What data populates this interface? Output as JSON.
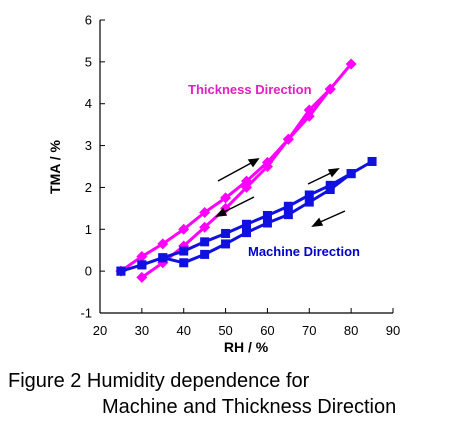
{
  "chart_data": {
    "type": "line",
    "xlabel": "RH / %",
    "ylabel": "TMA / %",
    "xlim": [
      20,
      90
    ],
    "ylim": [
      -1,
      6
    ],
    "x_ticks": [
      "20",
      "30",
      "40",
      "50",
      "60",
      "70",
      "80",
      "90"
    ],
    "y_ticks": [
      "-1",
      "0",
      "1",
      "2",
      "3",
      "4",
      "5",
      "6"
    ],
    "grid": false,
    "legend": "none",
    "series": [
      {
        "name": "Thickness Direction",
        "color": "#ff00ff",
        "marker": "diamond",
        "label_color": "#e020c0",
        "x": [
          25,
          30,
          35,
          40,
          45,
          50,
          55,
          60,
          65,
          70,
          75,
          80,
          75,
          70,
          65,
          60,
          55,
          50,
          45,
          40,
          35,
          30
        ],
        "y": [
          0.0,
          0.35,
          0.65,
          1.0,
          1.4,
          1.75,
          2.15,
          2.6,
          3.15,
          3.85,
          4.35,
          4.95,
          4.35,
          3.7,
          3.15,
          2.5,
          2.0,
          1.5,
          1.05,
          0.6,
          0.2,
          -0.15
        ]
      },
      {
        "name": "Machine Direction",
        "color": "#1010e0",
        "marker": "square",
        "label_color": "#0000cc",
        "x": [
          25,
          30,
          35,
          40,
          45,
          50,
          55,
          60,
          65,
          70,
          75,
          80,
          85,
          80,
          75,
          70,
          65,
          60,
          55,
          50,
          45,
          40,
          35,
          30,
          25
        ],
        "y": [
          0.0,
          0.15,
          0.32,
          0.48,
          0.7,
          0.9,
          1.12,
          1.33,
          1.55,
          1.82,
          2.05,
          2.33,
          2.62,
          2.33,
          1.95,
          1.65,
          1.35,
          1.15,
          0.92,
          0.65,
          0.4,
          0.2,
          0.32,
          0.15,
          0.0
        ]
      }
    ],
    "annotations": [
      "increasing-humidity arrow",
      "decreasing-humidity arrow"
    ]
  },
  "caption": {
    "line1": "Figure 2  Humidity dependence for",
    "line2": "Machine and Thickness Direction"
  }
}
